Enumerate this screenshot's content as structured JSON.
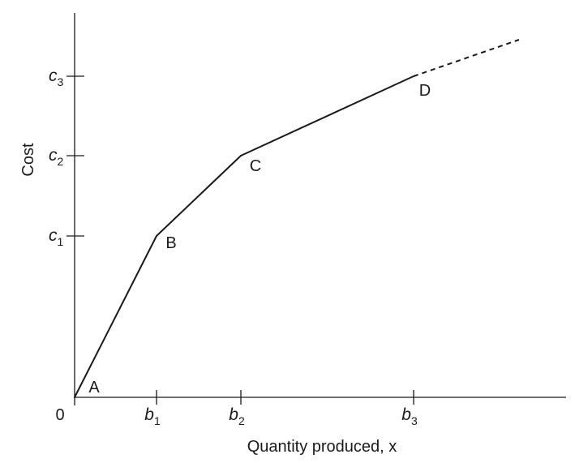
{
  "chart_data": {
    "type": "line",
    "xlabel": "Quantity produced, x",
    "ylabel": "Cost",
    "origin_label": "0",
    "x_ticks": [
      {
        "value": 1,
        "base": "b",
        "sub": "1"
      },
      {
        "value": 2,
        "base": "b",
        "sub": "2"
      },
      {
        "value": 3,
        "base": "b",
        "sub": "3"
      }
    ],
    "y_ticks": [
      {
        "value": 1,
        "base": "c",
        "sub": "1"
      },
      {
        "value": 2,
        "base": "c",
        "sub": "2"
      },
      {
        "value": 3,
        "base": "c",
        "sub": "3"
      }
    ],
    "points": [
      {
        "label": "A",
        "x": 0,
        "y": 0
      },
      {
        "label": "B",
        "x": 1,
        "y": 1
      },
      {
        "label": "C",
        "x": 2,
        "y": 2
      },
      {
        "label": "D",
        "x": 3,
        "y": 3
      }
    ],
    "extension": {
      "style": "dashed",
      "to": {
        "x": 4.25,
        "y": 3.5
      }
    },
    "xlim": [
      0,
      5.9
    ],
    "ylim": [
      0,
      4.75
    ],
    "colors": {
      "line": "#1a1a1a",
      "axis": "#1a1a1a"
    }
  }
}
